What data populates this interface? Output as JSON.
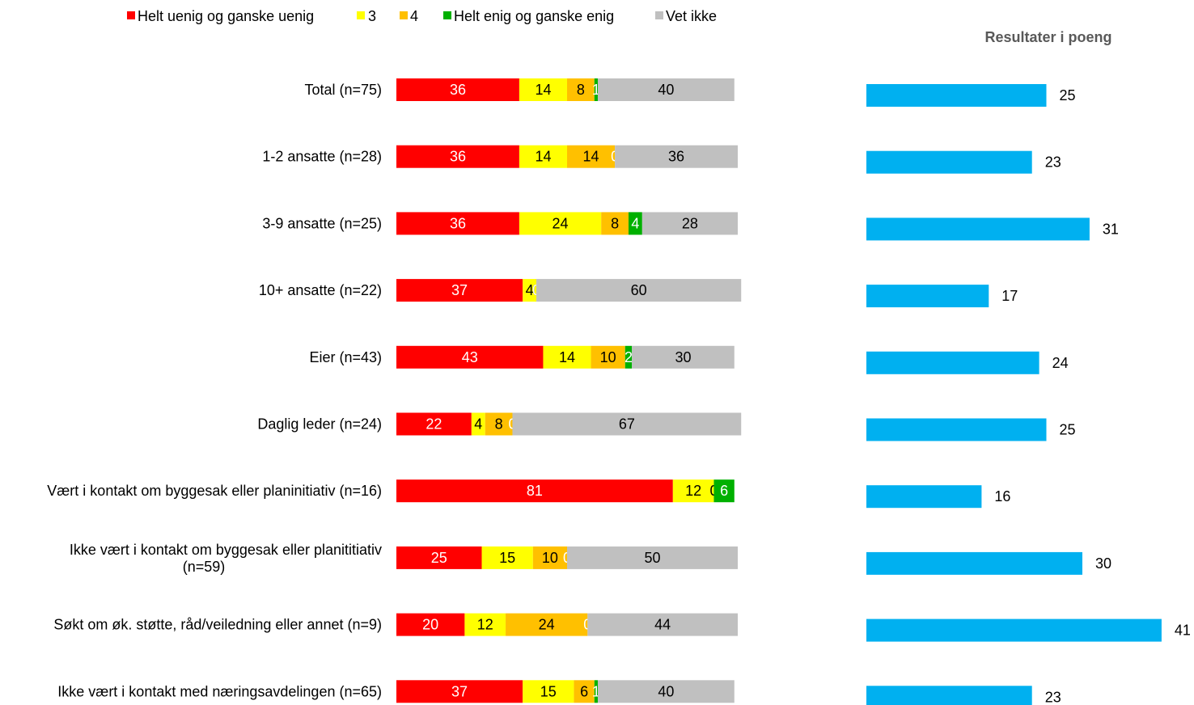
{
  "chart_data": [
    {
      "type": "bar",
      "orientation": "horizontal",
      "stacked": true,
      "unit": "percent",
      "categories": [
        "Total (n=75)",
        "1-2 ansatte (n=28)",
        "3-9 ansatte (n=25)",
        "10+ ansatte (n=22)",
        "Eier (n=43)",
        "Daglig leder (n=24)",
        "Vært i kontakt om byggesak eller planinitiativ (n=16)",
        "Ikke vært i kontakt om byggesak eller planititiativ (n=59)",
        "Søkt om øk. støtte, råd/veiledning eller annet (n=9)",
        "Ikke vært i kontakt med næringsavdelingen (n=65)"
      ],
      "series": [
        {
          "name": "Helt uenig og ganske uenig",
          "color": "#ff0000",
          "label_color": "#ffffff",
          "values": [
            36,
            36,
            36,
            37,
            43,
            22,
            81,
            25,
            20,
            37
          ]
        },
        {
          "name": "3",
          "color": "#ffff00",
          "label_color": "#000000",
          "values": [
            14,
            14,
            24,
            4,
            14,
            4,
            12,
            15,
            12,
            15
          ]
        },
        {
          "name": "4",
          "color": "#ffc000",
          "label_color": "#000000",
          "values": [
            8,
            14,
            8,
            0,
            10,
            8,
            0,
            10,
            24,
            6
          ]
        },
        {
          "name": "Helt enig og ganske enig",
          "color": "#00b000",
          "label_color": "#ffffff",
          "values": [
            1,
            0,
            4,
            0,
            2,
            0,
            6,
            0,
            0,
            1
          ]
        },
        {
          "name": "Vet ikke",
          "color": "#c0c0c0",
          "label_color": "#000000",
          "values": [
            40,
            36,
            28,
            60,
            30,
            67,
            0,
            50,
            44,
            40
          ]
        }
      ],
      "legend_position": "top",
      "grid": false
    },
    {
      "type": "bar",
      "orientation": "horizontal",
      "title": "Resultater i poeng",
      "color": "#00b0f0",
      "values": [
        25,
        23,
        31,
        17,
        24,
        25,
        16,
        30,
        41,
        23
      ]
    }
  ]
}
